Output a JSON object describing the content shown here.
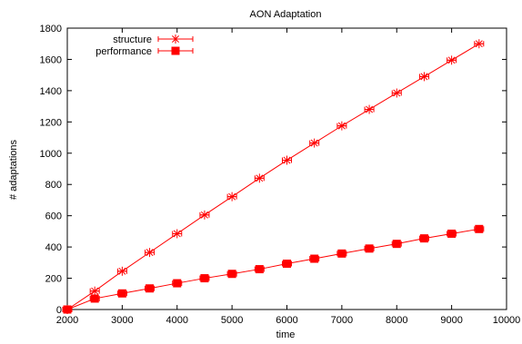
{
  "chart_data": {
    "type": "line",
    "title": "AON Adaptation",
    "xlabel": "time",
    "ylabel": "# adaptations",
    "xlim": [
      2000,
      10000
    ],
    "ylim": [
      0,
      1800
    ],
    "xticks": [
      2000,
      3000,
      4000,
      5000,
      6000,
      7000,
      8000,
      9000,
      10000
    ],
    "yticks": [
      0,
      200,
      400,
      600,
      800,
      1000,
      1200,
      1400,
      1600,
      1800
    ],
    "grid": false,
    "legend_position": "top-left",
    "color": "#ff0000",
    "series": [
      {
        "name": "structure",
        "marker": "asterisk",
        "x": [
          2000,
          2500,
          3000,
          3500,
          4000,
          4500,
          5000,
          5500,
          6000,
          6500,
          7000,
          7500,
          8000,
          8500,
          9000,
          9500
        ],
        "y": [
          0,
          118,
          245,
          365,
          485,
          605,
          722,
          840,
          955,
          1065,
          1175,
          1280,
          1385,
          1490,
          1595,
          1700
        ]
      },
      {
        "name": "performance",
        "marker": "filled-square",
        "x": [
          2000,
          2500,
          3000,
          3500,
          4000,
          4500,
          5000,
          5500,
          6000,
          6500,
          7000,
          7500,
          8000,
          8500,
          9000,
          9500
        ],
        "y": [
          0,
          70,
          103,
          135,
          168,
          200,
          228,
          258,
          293,
          325,
          358,
          390,
          420,
          455,
          485,
          515
        ]
      }
    ]
  }
}
